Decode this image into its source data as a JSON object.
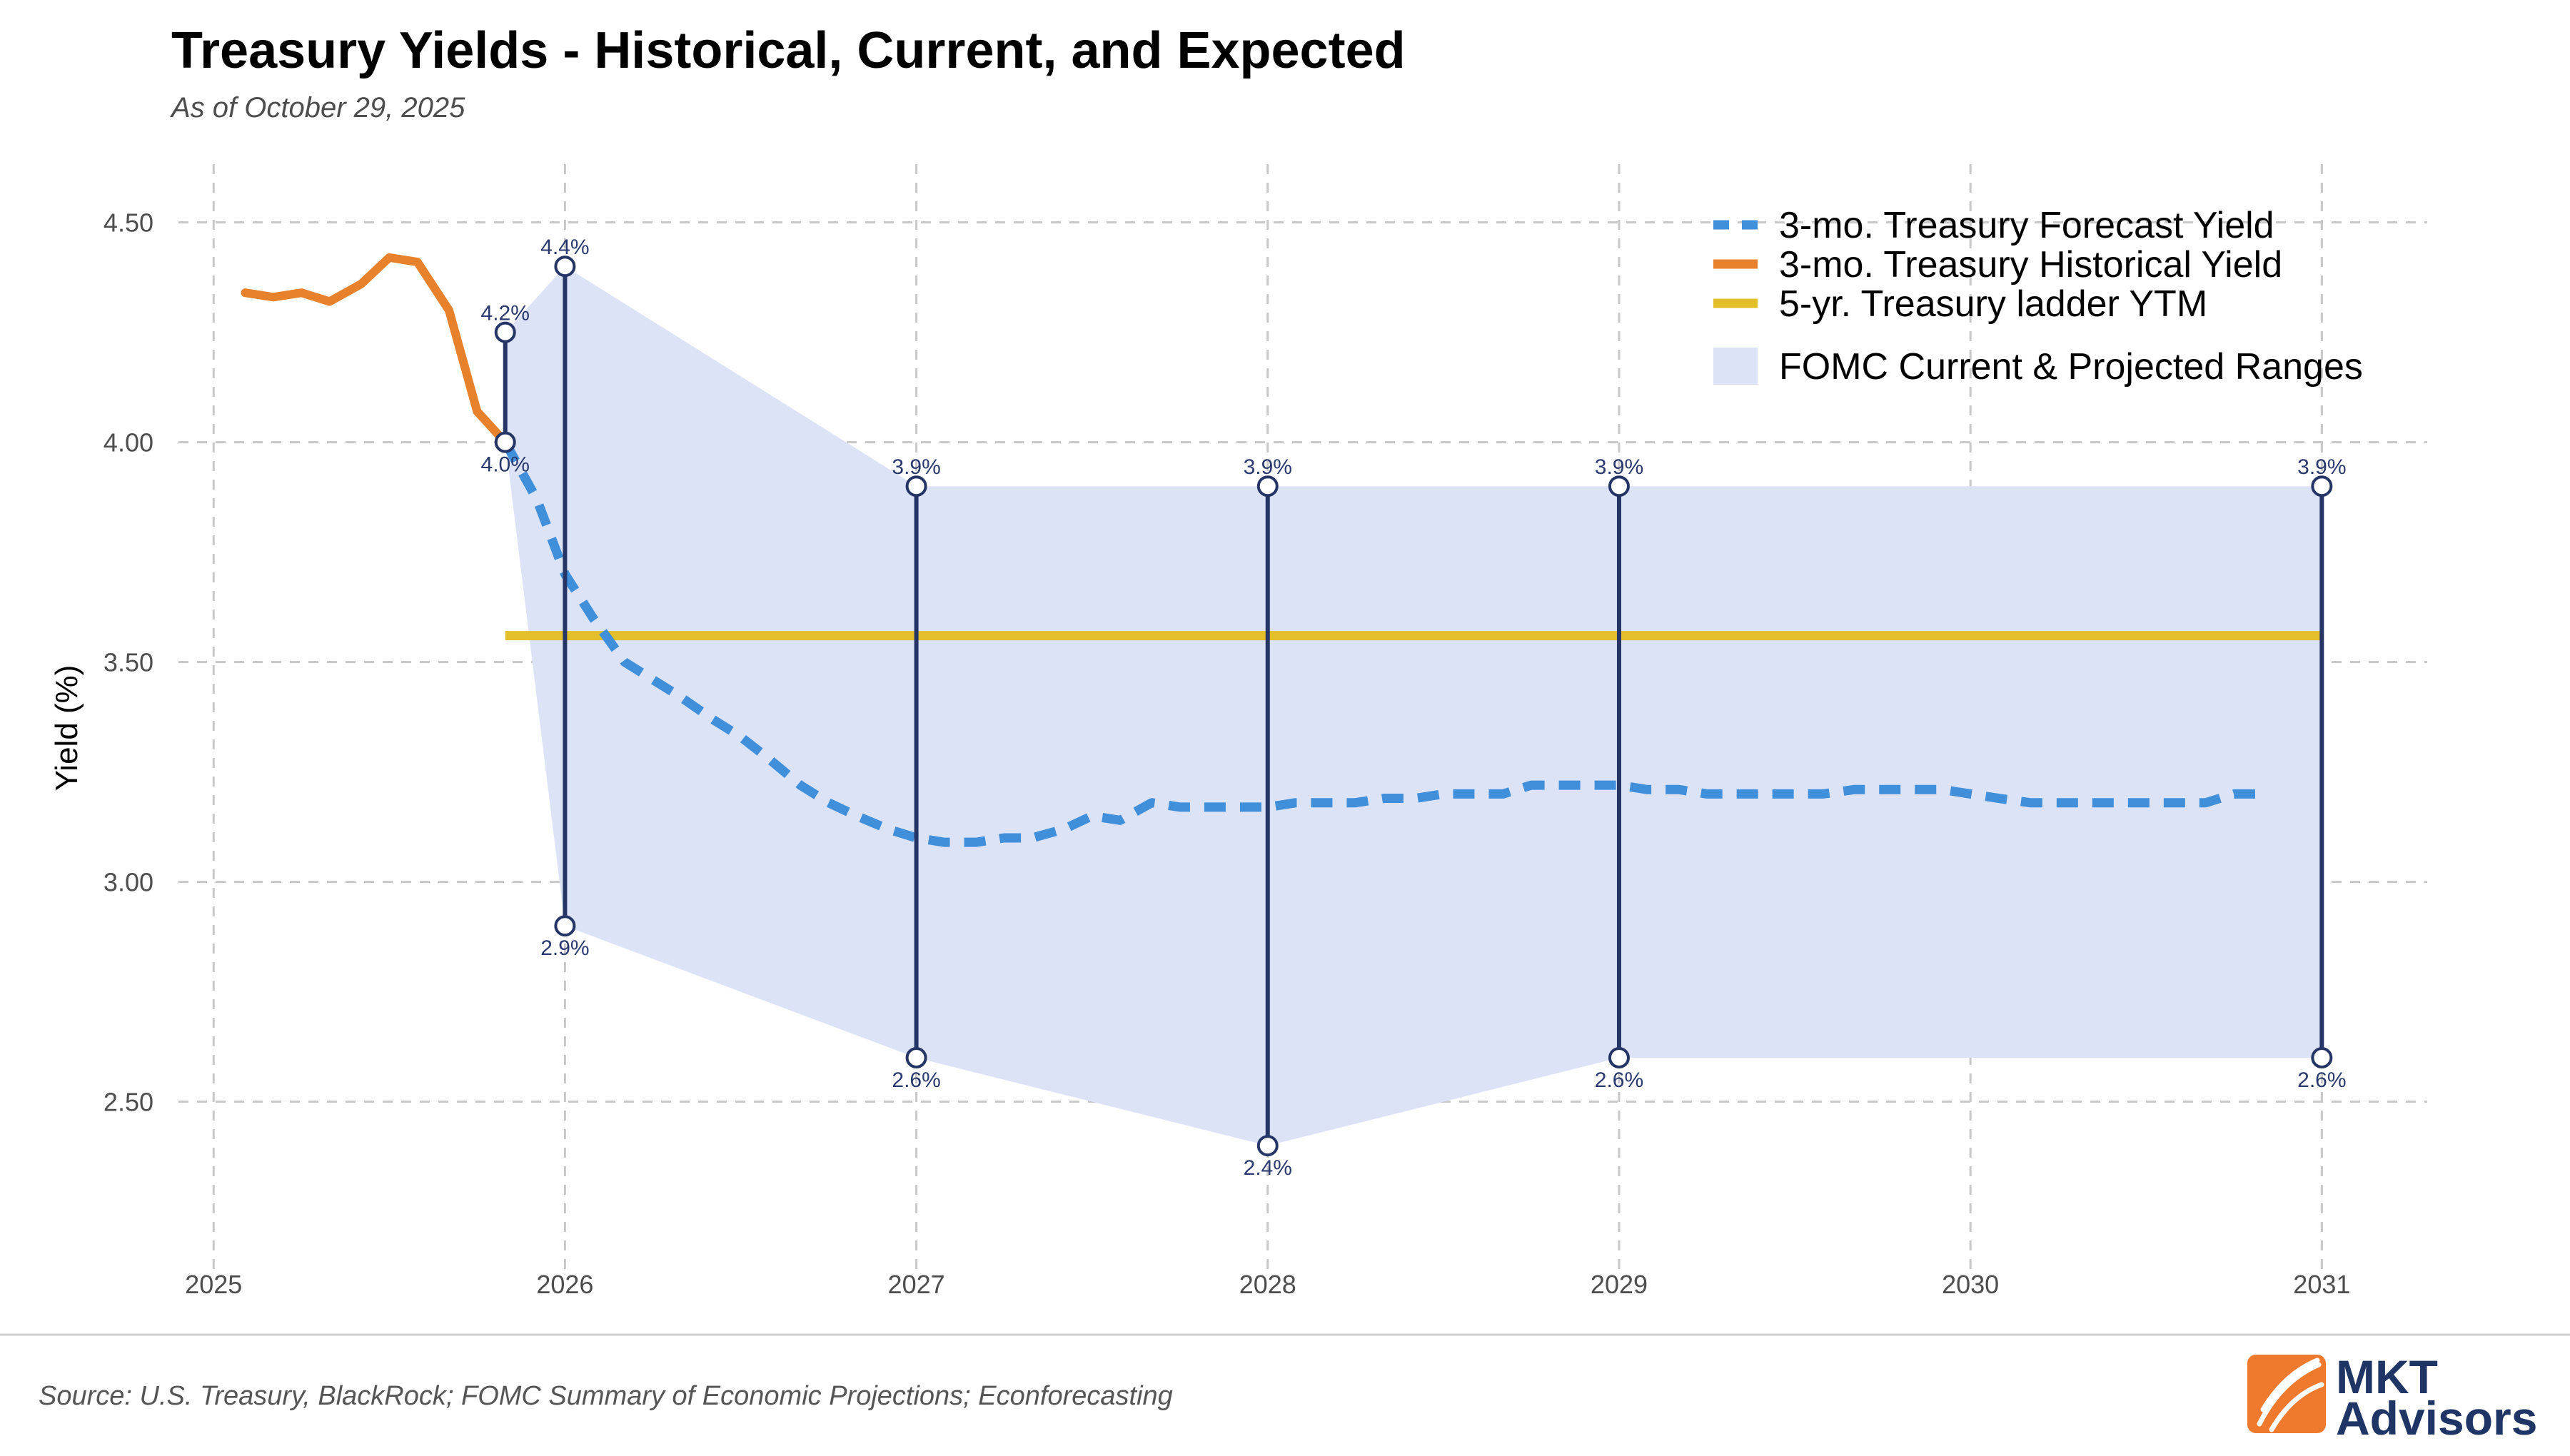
{
  "header": {
    "title": "Treasury Yields - Historical, Current, and Expected",
    "subtitle": "As of October 29, 2025"
  },
  "footer": {
    "source": "Source: U.S. Treasury, BlackRock; FOMC Summary of Economic Projections; Econforecasting",
    "brand_line1": "MKT",
    "brand_line2": "Advisors"
  },
  "colors": {
    "historical": "#e8812b",
    "forecast": "#3f8fdb",
    "ladder": "#e3bf2c",
    "range_fill": "#dde3f7",
    "range_line": "#243566",
    "grid": "#c8c8c8",
    "logo_orange": "#ef7a2e"
  },
  "chart_data": {
    "type": "line",
    "title": "Treasury Yields - Historical, Current, and Expected",
    "subtitle": "As of October 29, 2025",
    "xlabel": "",
    "ylabel": "Yield (%)",
    "xlim": [
      2024.9,
      2031.3
    ],
    "ylim": [
      2.1,
      4.6
    ],
    "x_ticks": [
      2025,
      2026,
      2027,
      2028,
      2029,
      2030,
      2031
    ],
    "x_tick_labels": [
      "2025",
      "2026",
      "2027",
      "2028",
      "2029",
      "2030",
      "2031"
    ],
    "y_ticks": [
      2.5,
      3.0,
      3.5,
      4.0,
      4.5
    ],
    "y_tick_labels": [
      "2.50",
      "3.00",
      "3.50",
      "4.00",
      "4.50"
    ],
    "grid": true,
    "legend_position": "top-right",
    "legend": [
      {
        "key": "forecast",
        "label": "3-mo. Treasury Forecast Yield",
        "style": "dashed"
      },
      {
        "key": "historical",
        "label": "3-mo. Treasury Historical Yield",
        "style": "solid"
      },
      {
        "key": "ladder",
        "label": "5-yr. Treasury ladder YTM",
        "style": "solid"
      },
      {
        "key": "range_fill",
        "label": "FOMC Current & Projected Ranges",
        "style": "fill"
      }
    ],
    "series": [
      {
        "name": "3-mo. Treasury Historical Yield",
        "key": "historical",
        "x": [
          2025.09,
          2025.17,
          2025.25,
          2025.33,
          2025.42,
          2025.5,
          2025.58,
          2025.67,
          2025.75,
          2025.83
        ],
        "y": [
          4.34,
          4.33,
          4.34,
          4.32,
          4.36,
          4.42,
          4.41,
          4.3,
          4.07,
          4.0
        ]
      },
      {
        "name": "3-mo. Treasury Forecast Yield",
        "key": "forecast",
        "x": [
          2025.83,
          2025.92,
          2026.0,
          2026.08,
          2026.17,
          2026.25,
          2026.33,
          2026.42,
          2026.5,
          2026.58,
          2026.67,
          2026.75,
          2026.83,
          2026.92,
          2027.0,
          2027.08,
          2027.17,
          2027.25,
          2027.33,
          2027.42,
          2027.5,
          2027.58,
          2027.67,
          2027.75,
          2027.83,
          2027.92,
          2028.0,
          2028.08,
          2028.17,
          2028.25,
          2028.33,
          2028.42,
          2028.5,
          2028.58,
          2028.67,
          2028.75,
          2028.83,
          2028.92,
          2029.0,
          2029.08,
          2029.17,
          2029.25,
          2029.33,
          2029.42,
          2029.5,
          2029.58,
          2029.67,
          2029.75,
          2029.83,
          2029.92,
          2030.0,
          2030.08,
          2030.17,
          2030.25,
          2030.33,
          2030.42,
          2030.5,
          2030.58,
          2030.67,
          2030.75,
          2030.83
        ],
        "y": [
          4.0,
          3.87,
          3.7,
          3.6,
          3.5,
          3.46,
          3.42,
          3.37,
          3.33,
          3.28,
          3.22,
          3.18,
          3.15,
          3.12,
          3.1,
          3.09,
          3.09,
          3.1,
          3.1,
          3.12,
          3.15,
          3.14,
          3.18,
          3.17,
          3.17,
          3.17,
          3.17,
          3.18,
          3.18,
          3.18,
          3.19,
          3.19,
          3.2,
          3.2,
          3.2,
          3.22,
          3.22,
          3.22,
          3.22,
          3.21,
          3.21,
          3.2,
          3.2,
          3.2,
          3.2,
          3.2,
          3.21,
          3.21,
          3.21,
          3.21,
          3.2,
          3.19,
          3.18,
          3.18,
          3.18,
          3.18,
          3.18,
          3.18,
          3.18,
          3.2,
          3.2
        ]
      },
      {
        "name": "5-yr. Treasury ladder YTM",
        "key": "ladder",
        "x": [
          2025.83,
          2031.0
        ],
        "y": [
          3.56,
          3.56
        ]
      }
    ],
    "fomc_ranges": [
      {
        "x": 2025.83,
        "low": 4.0,
        "high": 4.25,
        "low_label": "4.0%",
        "high_label": "4.2%"
      },
      {
        "x": 2026.0,
        "low": 2.9,
        "high": 4.4,
        "low_label": "2.9%",
        "high_label": "4.4%"
      },
      {
        "x": 2027.0,
        "low": 2.6,
        "high": 3.9,
        "low_label": "2.6%",
        "high_label": "3.9%"
      },
      {
        "x": 2028.0,
        "low": 2.4,
        "high": 3.9,
        "low_label": "2.4%",
        "high_label": "3.9%"
      },
      {
        "x": 2029.0,
        "low": 2.6,
        "high": 3.9,
        "low_label": "2.6%",
        "high_label": "3.9%"
      },
      {
        "x": 2031.0,
        "low": 2.6,
        "high": 3.9,
        "low_label": "2.6%",
        "high_label": "3.9%"
      }
    ],
    "fomc_band": {
      "x": [
        2025.83,
        2026.0,
        2027.0,
        2028.0,
        2029.0,
        2031.0
      ],
      "low": [
        4.0,
        2.9,
        2.6,
        2.4,
        2.6,
        2.6
      ],
      "high": [
        4.25,
        4.4,
        3.9,
        3.9,
        3.9,
        3.9
      ]
    }
  }
}
